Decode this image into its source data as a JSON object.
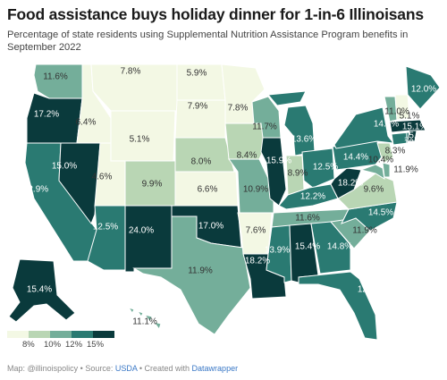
{
  "header": {
    "title": "Food assistance buys holiday dinner for 1-in-6 Illinoisans",
    "subtitle": "Percentage of state residents using Supplemental Nutrition Assistance Program benefits in September 2022"
  },
  "colors": {
    "lt8": "#f3f8e4",
    "b8_10": "#b9d6b4",
    "b10_12": "#74ae9a",
    "b12_15": "#2a7a72",
    "gt15": "#0a3a3c",
    "background": "#ffffff"
  },
  "legend": {
    "ticks": [
      "8%",
      "10%",
      "12%",
      "15%"
    ]
  },
  "states": [
    {
      "abbr": "WA",
      "value": 11.6,
      "label": "11.6%"
    },
    {
      "abbr": "OR",
      "value": 17.2,
      "label": "17.2%"
    },
    {
      "abbr": "CA",
      "value": 12.9,
      "label": "12.9%"
    },
    {
      "abbr": "NV",
      "value": 15.0,
      "label": "15.0%"
    },
    {
      "abbr": "ID",
      "value": 6.4,
      "label": "6.4%"
    },
    {
      "abbr": "MT",
      "value": 7.8,
      "label": "7.8%"
    },
    {
      "abbr": "WY",
      "value": 5.1,
      "label": "5.1%"
    },
    {
      "abbr": "UT",
      "value": 4.6,
      "label": "4.6%"
    },
    {
      "abbr": "AZ",
      "value": 12.5,
      "label": "12.5%"
    },
    {
      "abbr": "CO",
      "value": 9.9,
      "label": "9.9%"
    },
    {
      "abbr": "NM",
      "value": 24.0,
      "label": "24.0%"
    },
    {
      "abbr": "ND",
      "value": 5.9,
      "label": "5.9%"
    },
    {
      "abbr": "SD",
      "value": 7.9,
      "label": "7.9%"
    },
    {
      "abbr": "NE",
      "value": 8.0,
      "label": "8.0%"
    },
    {
      "abbr": "KS",
      "value": 6.6,
      "label": "6.6%"
    },
    {
      "abbr": "OK",
      "value": 17.0,
      "label": "17.0%"
    },
    {
      "abbr": "TX",
      "value": 11.9,
      "label": "11.9%"
    },
    {
      "abbr": "MN",
      "value": 7.8,
      "label": "7.8%"
    },
    {
      "abbr": "IA",
      "value": 8.4,
      "label": "8.4%"
    },
    {
      "abbr": "MO",
      "value": 10.9,
      "label": "10.9%"
    },
    {
      "abbr": "AR",
      "value": 7.6,
      "label": "7.6%"
    },
    {
      "abbr": "LA",
      "value": 18.2,
      "label": "18.2%"
    },
    {
      "abbr": "WI",
      "value": 11.7,
      "label": "11.7%"
    },
    {
      "abbr": "IL",
      "value": 15.9,
      "label": "15.9%"
    },
    {
      "abbr": "MI",
      "value": 13.6,
      "label": "13.6%"
    },
    {
      "abbr": "IN",
      "value": 8.9,
      "label": "8.9%"
    },
    {
      "abbr": "OH",
      "value": 12.5,
      "label": "12.5%"
    },
    {
      "abbr": "KY",
      "value": 12.2,
      "label": "12.2%"
    },
    {
      "abbr": "TN",
      "value": 11.6,
      "label": "11.6%"
    },
    {
      "abbr": "MS",
      "value": 13.9,
      "label": "13.9%"
    },
    {
      "abbr": "AL",
      "value": 15.4,
      "label": "15.4%"
    },
    {
      "abbr": "GA",
      "value": 14.8,
      "label": "14.8%"
    },
    {
      "abbr": "FL",
      "value": 12.9,
      "label": "12.9%"
    },
    {
      "abbr": "SC",
      "value": 11.9,
      "label": "11.9%"
    },
    {
      "abbr": "NC",
      "value": 14.5,
      "label": "14.5%"
    },
    {
      "abbr": "VA",
      "value": 9.6,
      "label": "9.6%"
    },
    {
      "abbr": "WV",
      "value": 18.2,
      "label": "18.2%"
    },
    {
      "abbr": "PA",
      "value": 14.4,
      "label": "14.4%"
    },
    {
      "abbr": "NY",
      "value": 14.4,
      "label": "14.4%"
    },
    {
      "abbr": "ME",
      "value": 12.0,
      "label": "12.0%"
    },
    {
      "abbr": "VT",
      "value": 11.0,
      "label": "11.0%"
    },
    {
      "abbr": "NH",
      "value": 5.1,
      "label": "5.1%"
    },
    {
      "abbr": "MA",
      "value": 15.1,
      "label": "15.1%"
    },
    {
      "abbr": "RI",
      "value": 15.1,
      "label": "15.1%"
    },
    {
      "abbr": "CT",
      "value": 12.8,
      "label": "12.8%"
    },
    {
      "abbr": "NJ",
      "value": 8.3,
      "label": "8.3%"
    },
    {
      "abbr": "DE",
      "value": 11.9,
      "label": "11.9%"
    },
    {
      "abbr": "MD",
      "value": 10.4,
      "label": "10.4%"
    },
    {
      "abbr": "AK",
      "value": 15.4,
      "label": "15.4%"
    },
    {
      "abbr": "HI",
      "value": 11.1,
      "label": "11.1%"
    }
  ],
  "footer": {
    "prefix": "Map: @illinoispolicy • Source: ",
    "source_link": "USDA",
    "middle": " • Created with ",
    "tool_link": "Datawrapper"
  }
}
